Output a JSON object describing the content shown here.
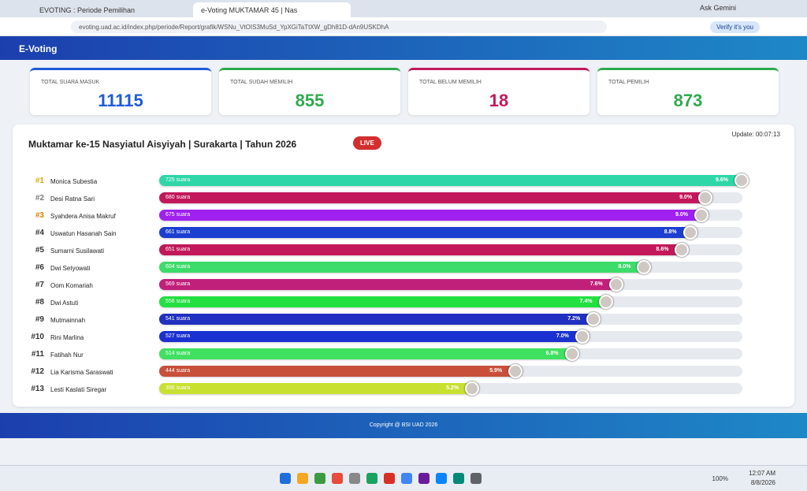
{
  "browser": {
    "tabs": [
      "EVOTING : Periode Pemilihan",
      "e-Voting MUKTAMAR 45 | Nas"
    ],
    "url": "evoting.uad.ac.id/index.php/periode/Report/grafik/WSNu_VtOIS3MuSd_YpXGiTaTtXW_gDh81D-dAn9USKDhA",
    "gemini": "Ask Gemini",
    "profile": "Verify it's you"
  },
  "header": {
    "title": "E-Voting"
  },
  "stats": [
    {
      "label": "TOTAL SUARA MASUK",
      "value": 11115,
      "color": "#1e5bd8"
    },
    {
      "label": "TOTAL SUDAH MEMILIH",
      "value": 855,
      "color": "#2eaa4f"
    },
    {
      "label": "TOTAL BELUM MEMILIH",
      "value": 18,
      "color": "#c2185b"
    },
    {
      "label": "TOTAL PEMILIH",
      "value": 873,
      "color": "#2eaa4f"
    }
  ],
  "panel": {
    "title": "Muktamar ke-15 Nasyiatul Aisyiyah | Surakarta | Tahun 2026",
    "live": "LIVE",
    "update": "Update: 00:07:13"
  },
  "candidates": [
    {
      "rank": "#1",
      "name": "Monica Subestia",
      "votes": 725,
      "votes_label": "725 suara",
      "percent": "9.6%",
      "color": "#2fd6a8"
    },
    {
      "rank": "#2",
      "name": "Desi Ratna Sari",
      "votes": 680,
      "votes_label": "680 suara",
      "percent": "9.0%",
      "color": "#c2185b"
    },
    {
      "rank": "#3",
      "name": "Syahdera Anisa Makruf",
      "votes": 675,
      "votes_label": "675 suara",
      "percent": "9.0%",
      "color": "#a021ef"
    },
    {
      "rank": "#4",
      "name": "Uswatun Hasanah Sain",
      "votes": 661,
      "votes_label": "661 suara",
      "percent": "8.8%",
      "color": "#1b3fd0"
    },
    {
      "rank": "#5",
      "name": "Sumarni Susilawati",
      "votes": 651,
      "votes_label": "651 suara",
      "percent": "8.6%",
      "color": "#c2185b"
    },
    {
      "rank": "#6",
      "name": "Dwi Setyowati",
      "votes": 604,
      "votes_label": "604 suara",
      "percent": "8.0%",
      "color": "#3ddc6a"
    },
    {
      "rank": "#7",
      "name": "Oom Komariah",
      "votes": 569,
      "votes_label": "569 suara",
      "percent": "7.6%",
      "color": "#c0207a"
    },
    {
      "rank": "#8",
      "name": "Dwi Astuti",
      "votes": 556,
      "votes_label": "556 suara",
      "percent": "7.4%",
      "color": "#22e040"
    },
    {
      "rank": "#9",
      "name": "Mutmainnah",
      "votes": 541,
      "votes_label": "541 suara",
      "percent": "7.2%",
      "color": "#2030c0"
    },
    {
      "rank": "#10",
      "name": "Rini Marlina",
      "votes": 527,
      "votes_label": "527 suara",
      "percent": "7.0%",
      "color": "#1a30d0"
    },
    {
      "rank": "#11",
      "name": "Fatihah Nur",
      "votes": 514,
      "votes_label": "514 suara",
      "percent": "6.8%",
      "color": "#40e060"
    },
    {
      "rank": "#12",
      "name": "Lia Karisma Saraswati",
      "votes": 444,
      "votes_label": "444 suara",
      "percent": "5.9%",
      "color": "#c8503a"
    },
    {
      "rank": "#13",
      "name": "Lesti Kaslati Siregar",
      "votes": 390,
      "votes_label": "390 suara",
      "percent": "5.2%",
      "color": "#c8e030"
    }
  ],
  "footer": "Copyright @ BSI UAD 2026",
  "taskbar": {
    "battery": "100%",
    "time": "12:07 AM",
    "date": "8/8/2026"
  }
}
